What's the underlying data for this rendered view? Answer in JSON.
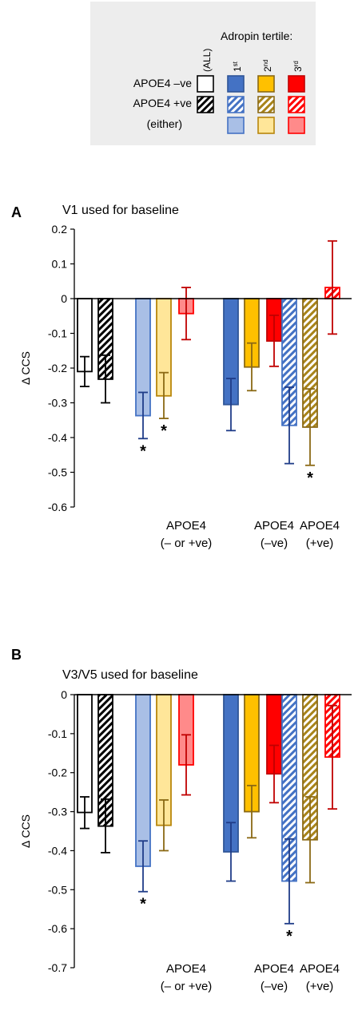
{
  "legend": {
    "tertile_title": "Adropin tertile:",
    "column_all": "(ALL)",
    "columns": [
      {
        "base": "1",
        "sup": "st"
      },
      {
        "base": "2",
        "sup": "nd"
      },
      {
        "base": "3",
        "sup": "rd"
      }
    ],
    "rows": [
      "APOE4 –ve",
      "APOE4 +ve",
      "(either)"
    ],
    "colors": {
      "t1": "#4472C4",
      "t2": "#FFC000",
      "t3": "#FF0000",
      "all": "#000000",
      "t1_light": "#A9BFE6",
      "t2_light": "#FFE699",
      "t3_light": "#FF8A8A",
      "t1_err": "#1F3C88",
      "t2_err": "#8B6914",
      "t3_err": "#C00000"
    }
  },
  "chart_data": [
    {
      "type": "bar",
      "panel_label": "A",
      "title": "V1 used for baseline",
      "ylabel": "Δ CCS",
      "ylim": [
        -0.6,
        0.2
      ],
      "yticks": [
        "0.2",
        "0.1",
        "0",
        "-0.1",
        "-0.2",
        "-0.3",
        "-0.4",
        "-0.5",
        "-0.6"
      ],
      "group_labels": [
        [
          "APOE4",
          "(– or +ve)"
        ],
        [
          "APOE4",
          "(–ve)"
        ],
        [
          "APOE4",
          "(+ve)"
        ]
      ],
      "bars": [
        {
          "group": "all",
          "style": "all-solid",
          "value": -0.21,
          "err_low": -0.253,
          "err_high": -0.167,
          "sig": ""
        },
        {
          "group": "all",
          "style": "all-hatch",
          "value": -0.232,
          "err_low": -0.3,
          "err_high": -0.163,
          "sig": ""
        },
        {
          "group": "either",
          "style": "t1-light",
          "value": -0.337,
          "err_low": -0.403,
          "err_high": -0.27,
          "sig": "*"
        },
        {
          "group": "either",
          "style": "t2-light",
          "value": -0.28,
          "err_low": -0.345,
          "err_high": -0.213,
          "sig": "*"
        },
        {
          "group": "either",
          "style": "t3-light",
          "value": -0.043,
          "err_low": -0.118,
          "err_high": 0.032,
          "sig": ""
        },
        {
          "group": "neg",
          "style": "t1-solid",
          "value": -0.305,
          "err_low": -0.38,
          "err_high": -0.23,
          "sig": ""
        },
        {
          "group": "neg",
          "style": "t2-solid",
          "value": -0.197,
          "err_low": -0.265,
          "err_high": -0.128,
          "sig": ""
        },
        {
          "group": "neg",
          "style": "t3-solid",
          "value": -0.122,
          "err_low": -0.195,
          "err_high": -0.048,
          "sig": ""
        },
        {
          "group": "pos",
          "style": "t1-hatch",
          "value": -0.365,
          "err_low": -0.475,
          "err_high": -0.255,
          "sig": ""
        },
        {
          "group": "pos",
          "style": "t2-hatch",
          "value": -0.37,
          "err_low": -0.48,
          "err_high": -0.26,
          "sig": "*"
        },
        {
          "group": "pos",
          "style": "t3-hatch",
          "value": 0.032,
          "err_low": -0.102,
          "err_high": 0.166,
          "sig": ""
        }
      ]
    },
    {
      "type": "bar",
      "panel_label": "B",
      "title": "V3/V5 used for baseline",
      "ylabel": "Δ CCS",
      "ylim": [
        -0.7,
        0
      ],
      "yticks": [
        "0",
        "-0.1",
        "-0.2",
        "-0.3",
        "-0.4",
        "-0.5",
        "-0.6",
        "-0.7"
      ],
      "group_labels": [
        [
          "APOE4",
          "(– or +ve)"
        ],
        [
          "APOE4",
          "(–ve)"
        ],
        [
          "APOE4",
          "(+ve)"
        ]
      ],
      "bars": [
        {
          "group": "all",
          "style": "all-solid",
          "value": -0.302,
          "err_low": -0.343,
          "err_high": -0.262,
          "sig": ""
        },
        {
          "group": "all",
          "style": "all-hatch",
          "value": -0.337,
          "err_low": -0.405,
          "err_high": -0.268,
          "sig": ""
        },
        {
          "group": "either",
          "style": "t1-light",
          "value": -0.44,
          "err_low": -0.505,
          "err_high": -0.375,
          "sig": "*"
        },
        {
          "group": "either",
          "style": "t2-light",
          "value": -0.335,
          "err_low": -0.4,
          "err_high": -0.27,
          "sig": ""
        },
        {
          "group": "either",
          "style": "t3-light",
          "value": -0.18,
          "err_low": -0.257,
          "err_high": -0.103,
          "sig": ""
        },
        {
          "group": "neg",
          "style": "t1-solid",
          "value": -0.403,
          "err_low": -0.478,
          "err_high": -0.328,
          "sig": ""
        },
        {
          "group": "neg",
          "style": "t2-solid",
          "value": -0.3,
          "err_low": -0.367,
          "err_high": -0.233,
          "sig": ""
        },
        {
          "group": "neg",
          "style": "t3-solid",
          "value": -0.203,
          "err_low": -0.277,
          "err_high": -0.13,
          "sig": ""
        },
        {
          "group": "pos",
          "style": "t1-hatch",
          "value": -0.478,
          "err_low": -0.587,
          "err_high": -0.37,
          "sig": "*"
        },
        {
          "group": "pos",
          "style": "t2-hatch",
          "value": -0.372,
          "err_low": -0.482,
          "err_high": -0.262,
          "sig": ""
        },
        {
          "group": "pos",
          "style": "t3-hatch",
          "value": -0.16,
          "err_low": -0.293,
          "err_high": -0.028,
          "sig": ""
        }
      ]
    }
  ]
}
